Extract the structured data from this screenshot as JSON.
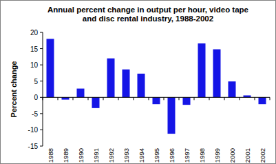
{
  "chart_data": {
    "type": "bar",
    "title": "Annual percent change in output per hour, video tape and disc rental industry, 1988-2002",
    "y_label": "Percent change",
    "categories": [
      "1988",
      "1989",
      "1990",
      "1991",
      "1992",
      "1993",
      "1994",
      "1995",
      "1996",
      "1997",
      "1998",
      "1999",
      "2000",
      "2001",
      "2002"
    ],
    "values": [
      18,
      -0.7,
      2.7,
      -3.3,
      12,
      8.6,
      7.3,
      -2.1,
      -11.2,
      -2.3,
      16.6,
      14.8,
      4.9,
      0.6,
      -2.1
    ],
    "color": "#1515e6",
    "ylim": [
      -15,
      20
    ],
    "yticks": [
      -15,
      -10,
      -5,
      0,
      5,
      10,
      15,
      20
    ],
    "grid": false
  }
}
